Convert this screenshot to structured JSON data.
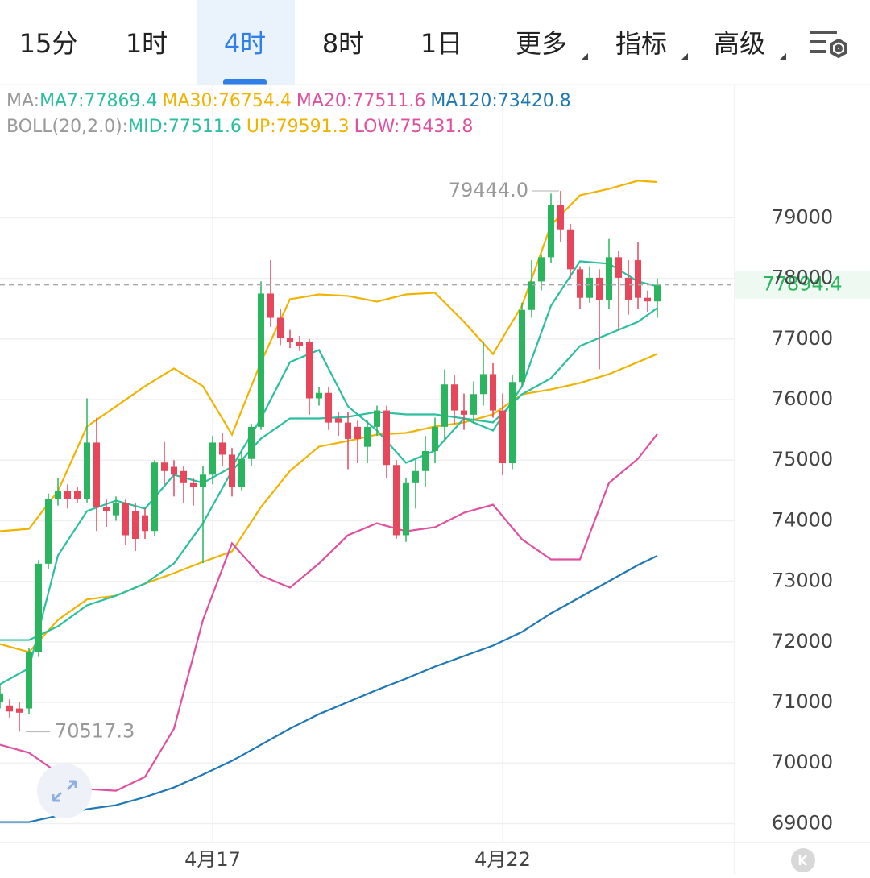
{
  "tabs": [
    "15分",
    "1时",
    "4时",
    "8时",
    "1日",
    "更多",
    "指标",
    "高级"
  ],
  "active_tab": 2,
  "chart_data": {
    "type": "candlestick",
    "ma_legend": {
      "label": "MA:",
      "items": [
        {
          "text": "MA7:77869.4",
          "color": "#2bbf9f"
        },
        {
          "text": "MA30:76754.4",
          "color": "#efb300"
        },
        {
          "text": "MA20:77511.6",
          "color": "#e0509f"
        },
        {
          "text": "MA120:73420.8",
          "color": "#1f78b4"
        }
      ]
    },
    "boll_legend": {
      "label": "BOLL(20,2.0):",
      "items": [
        {
          "text": "MID:77511.6",
          "color": "#2bbf9f"
        },
        {
          "text": "UP:79591.3",
          "color": "#efb300"
        },
        {
          "text": "LOW:75431.8",
          "color": "#e0509f"
        }
      ]
    },
    "categories": [
      null,
      null,
      null,
      null,
      null,
      null,
      null,
      null,
      null,
      null,
      null,
      null,
      null,
      null,
      null,
      null,
      null,
      null,
      null,
      null,
      null,
      null,
      "4月17",
      null,
      null,
      null,
      null,
      null,
      null,
      null,
      null,
      null,
      null,
      null,
      null,
      null,
      null,
      null,
      null,
      null,
      null,
      null,
      null,
      null,
      null,
      null,
      null,
      null,
      null,
      null,
      null,
      null,
      "4月22",
      null,
      null,
      null,
      null,
      null,
      null,
      null,
      null,
      null,
      null,
      null,
      null,
      null,
      null,
      null,
      null
    ],
    "open": [
      71000,
      70950,
      70900,
      70900,
      71830,
      73290,
      74360,
      74490,
      74490,
      74360,
      75290,
      74230,
      74090,
      74290,
      74160,
      74090,
      73830,
      74960,
      74890,
      74820,
      74620,
      74560,
      74760,
      75290,
      75090,
      74560,
      75020,
      75550,
      77750,
      77350,
      77020,
      76950,
      76950,
      76020,
      76110,
      75690,
      75620,
      75550,
      75220,
      75550,
      75820,
      74920,
      73760,
      74620,
      74820,
      75150,
      75550,
      76250,
      75820,
      75750,
      76090,
      76420,
      75820,
      74950,
      76290,
      77480,
      77950,
      78350,
      79210,
      78810,
      78150,
      77680,
      78010,
      77650,
      78350,
      78010,
      78300,
      77680,
      77620
    ],
    "close": [
      71150,
      70850,
      70830,
      71830,
      73290,
      74360,
      74490,
      74360,
      74360,
      75290,
      74230,
      74160,
      74290,
      73760,
      73700,
      73830,
      74960,
      74820,
      74760,
      74620,
      74560,
      74760,
      75290,
      75090,
      74560,
      75020,
      75550,
      77750,
      77350,
      77020,
      76950,
      76880,
      76020,
      76110,
      75620,
      75620,
      75350,
      75350,
      75550,
      75820,
      74920,
      73760,
      74620,
      74820,
      75150,
      75550,
      76250,
      75820,
      75750,
      76090,
      76420,
      75820,
      74950,
      76290,
      77480,
      77950,
      78350,
      79210,
      78810,
      78150,
      77680,
      78010,
      77650,
      78350,
      78010,
      77650,
      77680,
      77620,
      77894.4
    ],
    "high": [
      71300,
      71050,
      71000,
      71900,
      73350,
      74450,
      74700,
      74600,
      74550,
      76020,
      75700,
      74350,
      74400,
      74350,
      74300,
      74200,
      75000,
      75300,
      75000,
      74900,
      74700,
      74900,
      75400,
      75450,
      75200,
      75150,
      75600,
      77950,
      78300,
      77500,
      77150,
      77050,
      77000,
      76200,
      76200,
      75800,
      75800,
      75650,
      75650,
      75900,
      75900,
      75000,
      74700,
      75000,
      75400,
      75700,
      76500,
      76400,
      76100,
      76300,
      76950,
      76600,
      76100,
      76400,
      77600,
      78300,
      78400,
      79400,
      79444,
      78900,
      78200,
      78200,
      78150,
      78650,
      78450,
      78300,
      78600,
      77800,
      78000
    ],
    "low": [
      70900,
      70750,
      70517.3,
      70800,
      71750,
      73200,
      74250,
      74200,
      74300,
      74300,
      73830,
      73900,
      74000,
      73600,
      73500,
      73700,
      73750,
      74600,
      74400,
      74300,
      74250,
      73300,
      74600,
      74900,
      74400,
      74500,
      74900,
      75500,
      77200,
      76900,
      76850,
      76800,
      75750,
      75900,
      75500,
      75400,
      74850,
      74950,
      74950,
      75400,
      74700,
      73700,
      73650,
      74200,
      74550,
      74950,
      75300,
      75600,
      75500,
      75600,
      75900,
      75700,
      74750,
      74850,
      76200,
      77350,
      77800,
      78250,
      78600,
      78000,
      77500,
      77600,
      76500,
      77500,
      77150,
      77400,
      77500,
      77450,
      77350
    ],
    "up_color": "#2bb55f",
    "down_color": "#e8465b",
    "lines": [
      {
        "color": "#1f78b4",
        "x": [
          0,
          3,
          6,
          9,
          12,
          15,
          18,
          21,
          24,
          27,
          30,
          33,
          36,
          39,
          42,
          45,
          48,
          51,
          54,
          57,
          60,
          63,
          66,
          68
        ],
        "values": [
          69025,
          69025,
          69131,
          69238,
          69304,
          69437,
          69597,
          69810,
          70036,
          70302,
          70568,
          70807,
          71007,
          71207,
          71393,
          71592,
          71765,
          71938,
          72164,
          72470,
          72736,
          73002,
          73268,
          73420.8
        ]
      },
      {
        "color": "#efb300",
        "x": [
          0,
          3,
          6,
          9,
          12,
          15,
          18,
          21,
          24,
          27,
          30,
          33,
          36,
          39,
          42,
          45,
          48,
          51,
          54,
          57,
          60,
          63,
          66,
          68
        ],
        "values": [
          73826,
          73866,
          74491,
          75555,
          75888,
          76220,
          76513,
          76220,
          75422,
          76619,
          77657,
          77736,
          77710,
          77617,
          77736,
          77763,
          77284,
          76752,
          77550,
          78880,
          79372,
          79479,
          79612,
          79591.3
        ]
      },
      {
        "color": "#efb300",
        "x": [
          0,
          3,
          6,
          9,
          12,
          15,
          18,
          21,
          24,
          27,
          30,
          33,
          36,
          39,
          42,
          45,
          48,
          51,
          54,
          57,
          60,
          63,
          66,
          68
        ],
        "values": [
          71964,
          71831,
          72363,
          72700,
          72762,
          72962,
          73135,
          73321,
          73494,
          74225,
          74824,
          75223,
          75316,
          75422,
          75449,
          75555,
          75622,
          75755,
          76087,
          76167,
          76274,
          76420,
          76619,
          76754.4
        ]
      },
      {
        "color": "#2bbf9f",
        "x": [
          0,
          3,
          6,
          9,
          12,
          15,
          18,
          21,
          24,
          27,
          30,
          33,
          36,
          39,
          42,
          45,
          48,
          51,
          54,
          57,
          60,
          63,
          66,
          68
        ],
        "values": [
          71299,
          71565,
          73427,
          74159,
          74332,
          74199,
          74757,
          74624,
          74890,
          75688,
          76619,
          76819,
          75888,
          75489,
          74956,
          75156,
          75688,
          75489,
          76220,
          77550,
          78282,
          78242,
          77949,
          77869.4
        ]
      },
      {
        "color": "#2bbf9f",
        "x": [
          0,
          3,
          6,
          9,
          12,
          15,
          18,
          21,
          24,
          27,
          30,
          33,
          36,
          39,
          42,
          45,
          48,
          51,
          54,
          57,
          60,
          63,
          66,
          68
        ],
        "values": [
          72030,
          72030,
          72257,
          72603,
          72762,
          72962,
          73294,
          73959,
          74824,
          75356,
          75688,
          75688,
          75715,
          75795,
          75755,
          75755,
          75688,
          75622,
          76087,
          76353,
          76885,
          77085,
          77284,
          77511.6
        ]
      },
      {
        "color": "#e0509f",
        "x": [
          0,
          3,
          6,
          9,
          12,
          15,
          18,
          21,
          24,
          27,
          30,
          33,
          36,
          39,
          42,
          45,
          48,
          51,
          54,
          57,
          60,
          63,
          66,
          68
        ],
        "values": [
          70302,
          70169,
          69836,
          69570,
          69543,
          69770,
          70568,
          72363,
          73627,
          73095,
          72895,
          73294,
          73760,
          73959,
          73826,
          73893,
          74132,
          74265,
          73693,
          73361,
          73361,
          74624,
          75023,
          75431.8
        ]
      }
    ],
    "high_mark": {
      "value": 79444,
      "label": "79444.0",
      "index": 58
    },
    "low_mark": {
      "value": 70517.3,
      "index": 2
    },
    "last_price": 77894.4,
    "ylim": [
      68700,
      81200
    ],
    "yticks": [
      69000,
      70000,
      71000,
      72000,
      73000,
      74000,
      75000,
      76000,
      77000,
      78000,
      79000
    ],
    "grid": true
  }
}
